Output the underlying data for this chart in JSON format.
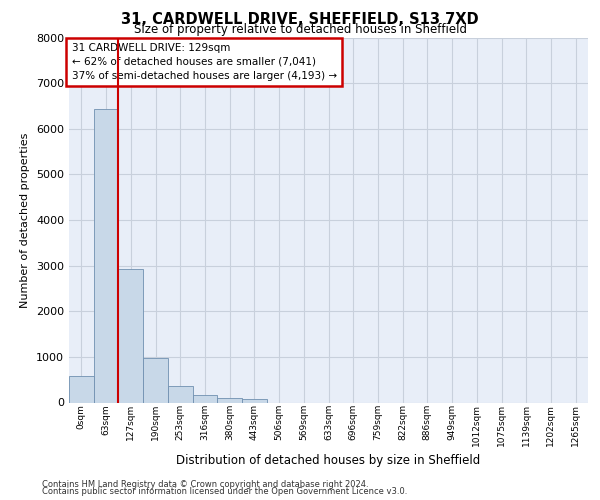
{
  "title_line1": "31, CARDWELL DRIVE, SHEFFIELD, S13 7XD",
  "title_line2": "Size of property relative to detached houses in Sheffield",
  "xlabel": "Distribution of detached houses by size in Sheffield",
  "ylabel": "Number of detached properties",
  "annotation_title": "31 CARDWELL DRIVE: 129sqm",
  "annotation_line2": "← 62% of detached houses are smaller (7,041)",
  "annotation_line3": "37% of semi-detached houses are larger (4,193) →",
  "bar_labels": [
    "0sqm",
    "63sqm",
    "127sqm",
    "190sqm",
    "253sqm",
    "316sqm",
    "380sqm",
    "443sqm",
    "506sqm",
    "569sqm",
    "633sqm",
    "696sqm",
    "759sqm",
    "822sqm",
    "886sqm",
    "949sqm",
    "1012sqm",
    "1075sqm",
    "1139sqm",
    "1202sqm",
    "1265sqm"
  ],
  "bar_values": [
    570,
    6430,
    2920,
    980,
    360,
    165,
    105,
    85,
    0,
    0,
    0,
    0,
    0,
    0,
    0,
    0,
    0,
    0,
    0,
    0,
    0
  ],
  "bar_color": "#c8d8e8",
  "bar_edge_color": "#7090b0",
  "vline_color": "#cc0000",
  "annotation_box_color": "#cc0000",
  "ylim": [
    0,
    8000
  ],
  "yticks": [
    0,
    1000,
    2000,
    3000,
    4000,
    5000,
    6000,
    7000,
    8000
  ],
  "grid_color": "#c8d0dc",
  "bg_color": "#e8eef8",
  "footer_line1": "Contains HM Land Registry data © Crown copyright and database right 2024.",
  "footer_line2": "Contains public sector information licensed under the Open Government Licence v3.0."
}
